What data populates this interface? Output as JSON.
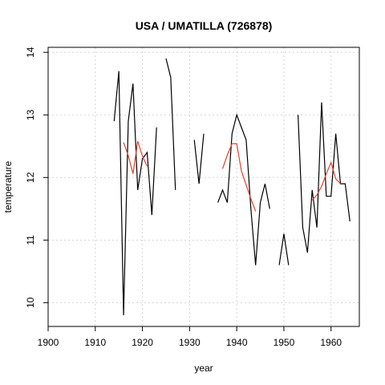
{
  "chart_data": {
    "type": "line",
    "title": "USA / UMATILLA (726878)",
    "xlabel": "year",
    "ylabel": "temperature",
    "xlim": [
      1900,
      1966
    ],
    "ylim": [
      9.62,
      14.08
    ],
    "xticks": [
      1900,
      1910,
      1920,
      1930,
      1940,
      1950,
      1960
    ],
    "yticks": [
      10,
      11,
      12,
      13,
      14
    ],
    "grid": true,
    "series": [
      {
        "color": "#000000",
        "points": [
          [
            1914,
            12.9
          ],
          [
            1915,
            13.7
          ],
          [
            1916,
            9.8
          ],
          [
            1917,
            12.9
          ],
          [
            1918,
            13.5
          ],
          [
            1919,
            11.8
          ],
          [
            1920,
            12.3
          ],
          [
            1921,
            12.4
          ],
          [
            1922,
            11.4
          ],
          [
            1923,
            12.8
          ],
          [
            1924,
            null
          ],
          [
            1925,
            13.9
          ],
          [
            1926,
            13.6
          ],
          [
            1927,
            11.8
          ],
          [
            1928,
            null
          ],
          [
            1931,
            12.6
          ],
          [
            1932,
            11.9
          ],
          [
            1933,
            12.7
          ],
          [
            1934,
            null
          ],
          [
            1936,
            11.6
          ],
          [
            1937,
            11.8
          ],
          [
            1938,
            11.6
          ],
          [
            1939,
            12.7
          ],
          [
            1940,
            13.0
          ],
          [
            1941,
            12.8
          ],
          [
            1942,
            12.6
          ],
          [
            1943,
            11.5
          ],
          [
            1944,
            10.6
          ],
          [
            1945,
            11.6
          ],
          [
            1946,
            11.9
          ],
          [
            1947,
            11.5
          ],
          [
            1948,
            null
          ],
          [
            1949,
            10.6
          ],
          [
            1950,
            11.1
          ],
          [
            1951,
            10.6
          ],
          [
            1952,
            null
          ],
          [
            1953,
            13.0
          ],
          [
            1954,
            11.2
          ],
          [
            1955,
            10.8
          ],
          [
            1956,
            11.8
          ],
          [
            1957,
            11.2
          ],
          [
            1958,
            13.2
          ],
          [
            1959,
            11.7
          ],
          [
            1960,
            11.7
          ],
          [
            1961,
            12.7
          ],
          [
            1962,
            11.9
          ],
          [
            1963,
            11.9
          ],
          [
            1964,
            11.3
          ]
        ]
      },
      {
        "color": "#e0442f",
        "points": [
          [
            1916,
            12.56
          ],
          [
            1917,
            12.35
          ],
          [
            1918,
            12.06
          ],
          [
            1919,
            12.58
          ],
          [
            1920,
            12.34
          ],
          [
            1921,
            12.18
          ],
          [
            1922,
            null
          ],
          [
            1937,
            12.14
          ],
          [
            1938,
            12.36
          ],
          [
            1939,
            12.54
          ],
          [
            1940,
            12.54
          ],
          [
            1941,
            12.1
          ],
          [
            1942,
            11.88
          ],
          [
            1943,
            11.66
          ],
          [
            1944,
            11.46
          ],
          [
            1945,
            null
          ],
          [
            1956,
            11.64
          ],
          [
            1957,
            11.72
          ],
          [
            1958,
            11.86
          ],
          [
            1959,
            12.06
          ],
          [
            1960,
            12.24
          ],
          [
            1961,
            11.98
          ],
          [
            1962,
            11.9
          ]
        ]
      }
    ]
  }
}
